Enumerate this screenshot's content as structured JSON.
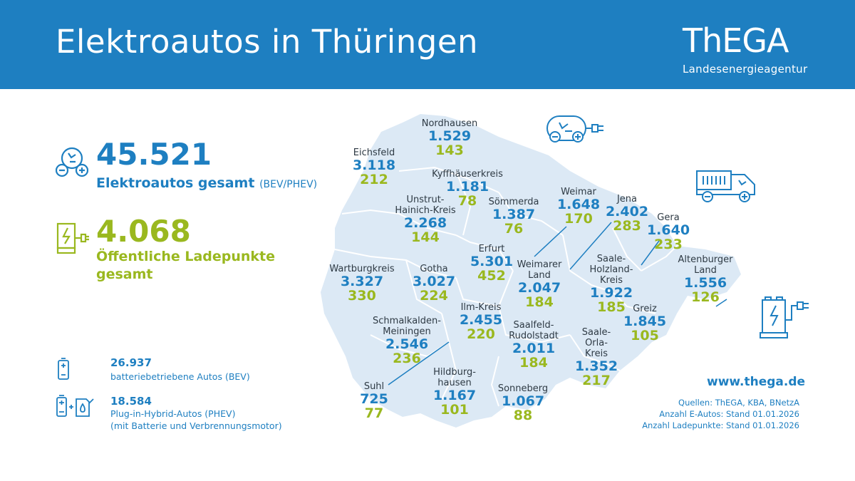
{
  "header": {
    "title": "Elektroautos in Thüringen",
    "logo": "ThEGA",
    "logo_sub": "Landesenergieagentur"
  },
  "colors": {
    "brand_blue": "#1e7fc1",
    "accent_green": "#9ab81f",
    "map_fill": "#dce9f5"
  },
  "totals": {
    "ev_total": "45.521",
    "ev_label": "Elektroautos gesamt",
    "ev_note": "(BEV/PHEV)",
    "charge_total": "4.068",
    "charge_label_1": "Öffentliche Ladepunkte",
    "charge_label_2": "gesamt"
  },
  "breakdown": {
    "bev_value": "26.937",
    "bev_label": "batteriebetriebene Autos (BEV)",
    "phev_value": "18.584",
    "phev_label_1": "Plug-in-Hybrid-Autos (PHEV)",
    "phev_label_2": "(mit Batterie und Verbrennungsmotor)"
  },
  "districts": [
    {
      "name": "Nordhausen",
      "ev": "1.529",
      "lp": "143"
    },
    {
      "name": "Eichsfeld",
      "ev": "3.118",
      "lp": "212"
    },
    {
      "name": "Kyffhäuserkreis",
      "ev": "1.181",
      "lp": "78"
    },
    {
      "name": "Unstrut-\nHainich-Kreis",
      "ev": "2.268",
      "lp": "144"
    },
    {
      "name": "Sömmerda",
      "ev": "1.387",
      "lp": "76"
    },
    {
      "name": "Weimar",
      "ev": "1.648",
      "lp": "170"
    },
    {
      "name": "Jena",
      "ev": "2.402",
      "lp": "283"
    },
    {
      "name": "Gera",
      "ev": "1.640",
      "lp": "233"
    },
    {
      "name": "Erfurt",
      "ev": "5.301",
      "lp": "452"
    },
    {
      "name": "Wartburgkreis",
      "ev": "3.327",
      "lp": "330"
    },
    {
      "name": "Gotha",
      "ev": "3.027",
      "lp": "224"
    },
    {
      "name": "Weimarer\nLand",
      "ev": "2.047",
      "lp": "184"
    },
    {
      "name": "Saale-\nHolzland-\nKreis",
      "ev": "1.922",
      "lp": "185"
    },
    {
      "name": "Altenburger\nLand",
      "ev": "1.556",
      "lp": "126"
    },
    {
      "name": "Ilm-Kreis",
      "ev": "2.455",
      "lp": "220"
    },
    {
      "name": "Schmalkalden-\nMeiningen",
      "ev": "2.546",
      "lp": "236"
    },
    {
      "name": "Greiz",
      "ev": "1.845",
      "lp": "105"
    },
    {
      "name": "Saalfeld-\nRudolstadt",
      "ev": "2.011",
      "lp": "184"
    },
    {
      "name": "Saale-\nOrla-\nKreis",
      "ev": "1.352",
      "lp": "217"
    },
    {
      "name": "Suhl",
      "ev": "725",
      "lp": "77"
    },
    {
      "name": "Hildburg-\nhausen",
      "ev": "1.167",
      "lp": "101"
    },
    {
      "name": "Sonneberg",
      "ev": "1.067",
      "lp": "88"
    }
  ],
  "footer": {
    "url": "www.thega.de",
    "sources": "Quellen: ThEGA, KBA, BNetzA",
    "stand_ev": "Anzahl E-Autos: Stand 01.01.2026",
    "stand_lp": "Anzahl Ladepunkte: Stand 01.01.2026"
  }
}
